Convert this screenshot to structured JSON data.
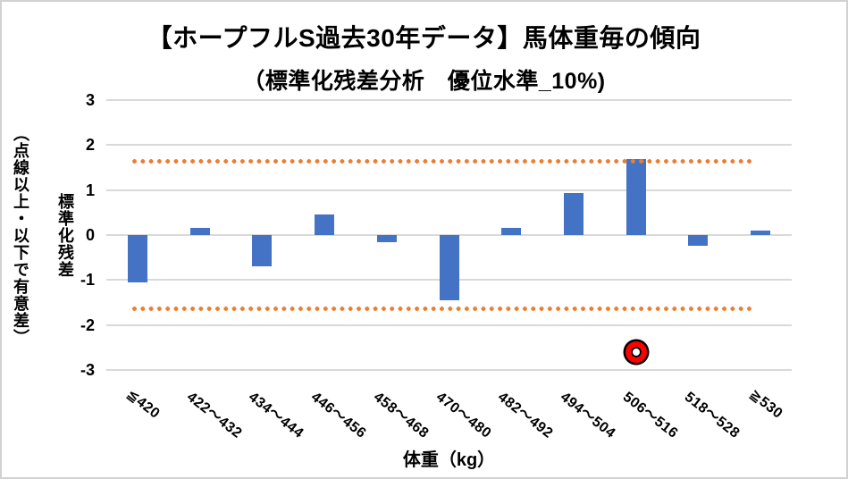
{
  "chart_data": {
    "type": "bar",
    "title": "【ホープフルS過去30年データ】馬体重毎の傾向",
    "subtitle": "（標準化残差分析　優位水準_10%)",
    "xlabel": "体重（kg）",
    "ylabel": "標準化残差（点線以上・以下で有意差）",
    "ylabel_line1": "標準化残差",
    "ylabel_line2": "（点線以上・以下で有意差）",
    "categories": [
      "≦420",
      "422～432",
      "434～444",
      "446～456",
      "458～468",
      "470～480",
      "482～492",
      "494～504",
      "506～516",
      "518～528",
      "≧530"
    ],
    "values": [
      -1.06,
      0.15,
      -0.7,
      0.46,
      -0.15,
      -1.46,
      0.15,
      0.93,
      1.69,
      -0.23,
      0.1
    ],
    "ylim": [
      -3,
      3
    ],
    "yticks": [
      3,
      2,
      1,
      0,
      -1,
      -2,
      -3
    ],
    "significance_lines": [
      1.645,
      -1.645
    ],
    "highlight_marker": {
      "category": "506～516",
      "value": -2.6,
      "style": "red-circle"
    },
    "grid": true,
    "legend": false,
    "layout_hints": {
      "bars_vertical": true,
      "x_labels_rotated_deg": 38,
      "dotted_lines_overlay_bars": true
    },
    "colors": {
      "bar": "#4472C4",
      "significance_dots": "#ED7D31",
      "marker_ring": "#FE0000",
      "marker_outline": "#000000",
      "gridline": "#D9D9D9",
      "text": "#000000",
      "background": "#FFFFFF"
    }
  }
}
